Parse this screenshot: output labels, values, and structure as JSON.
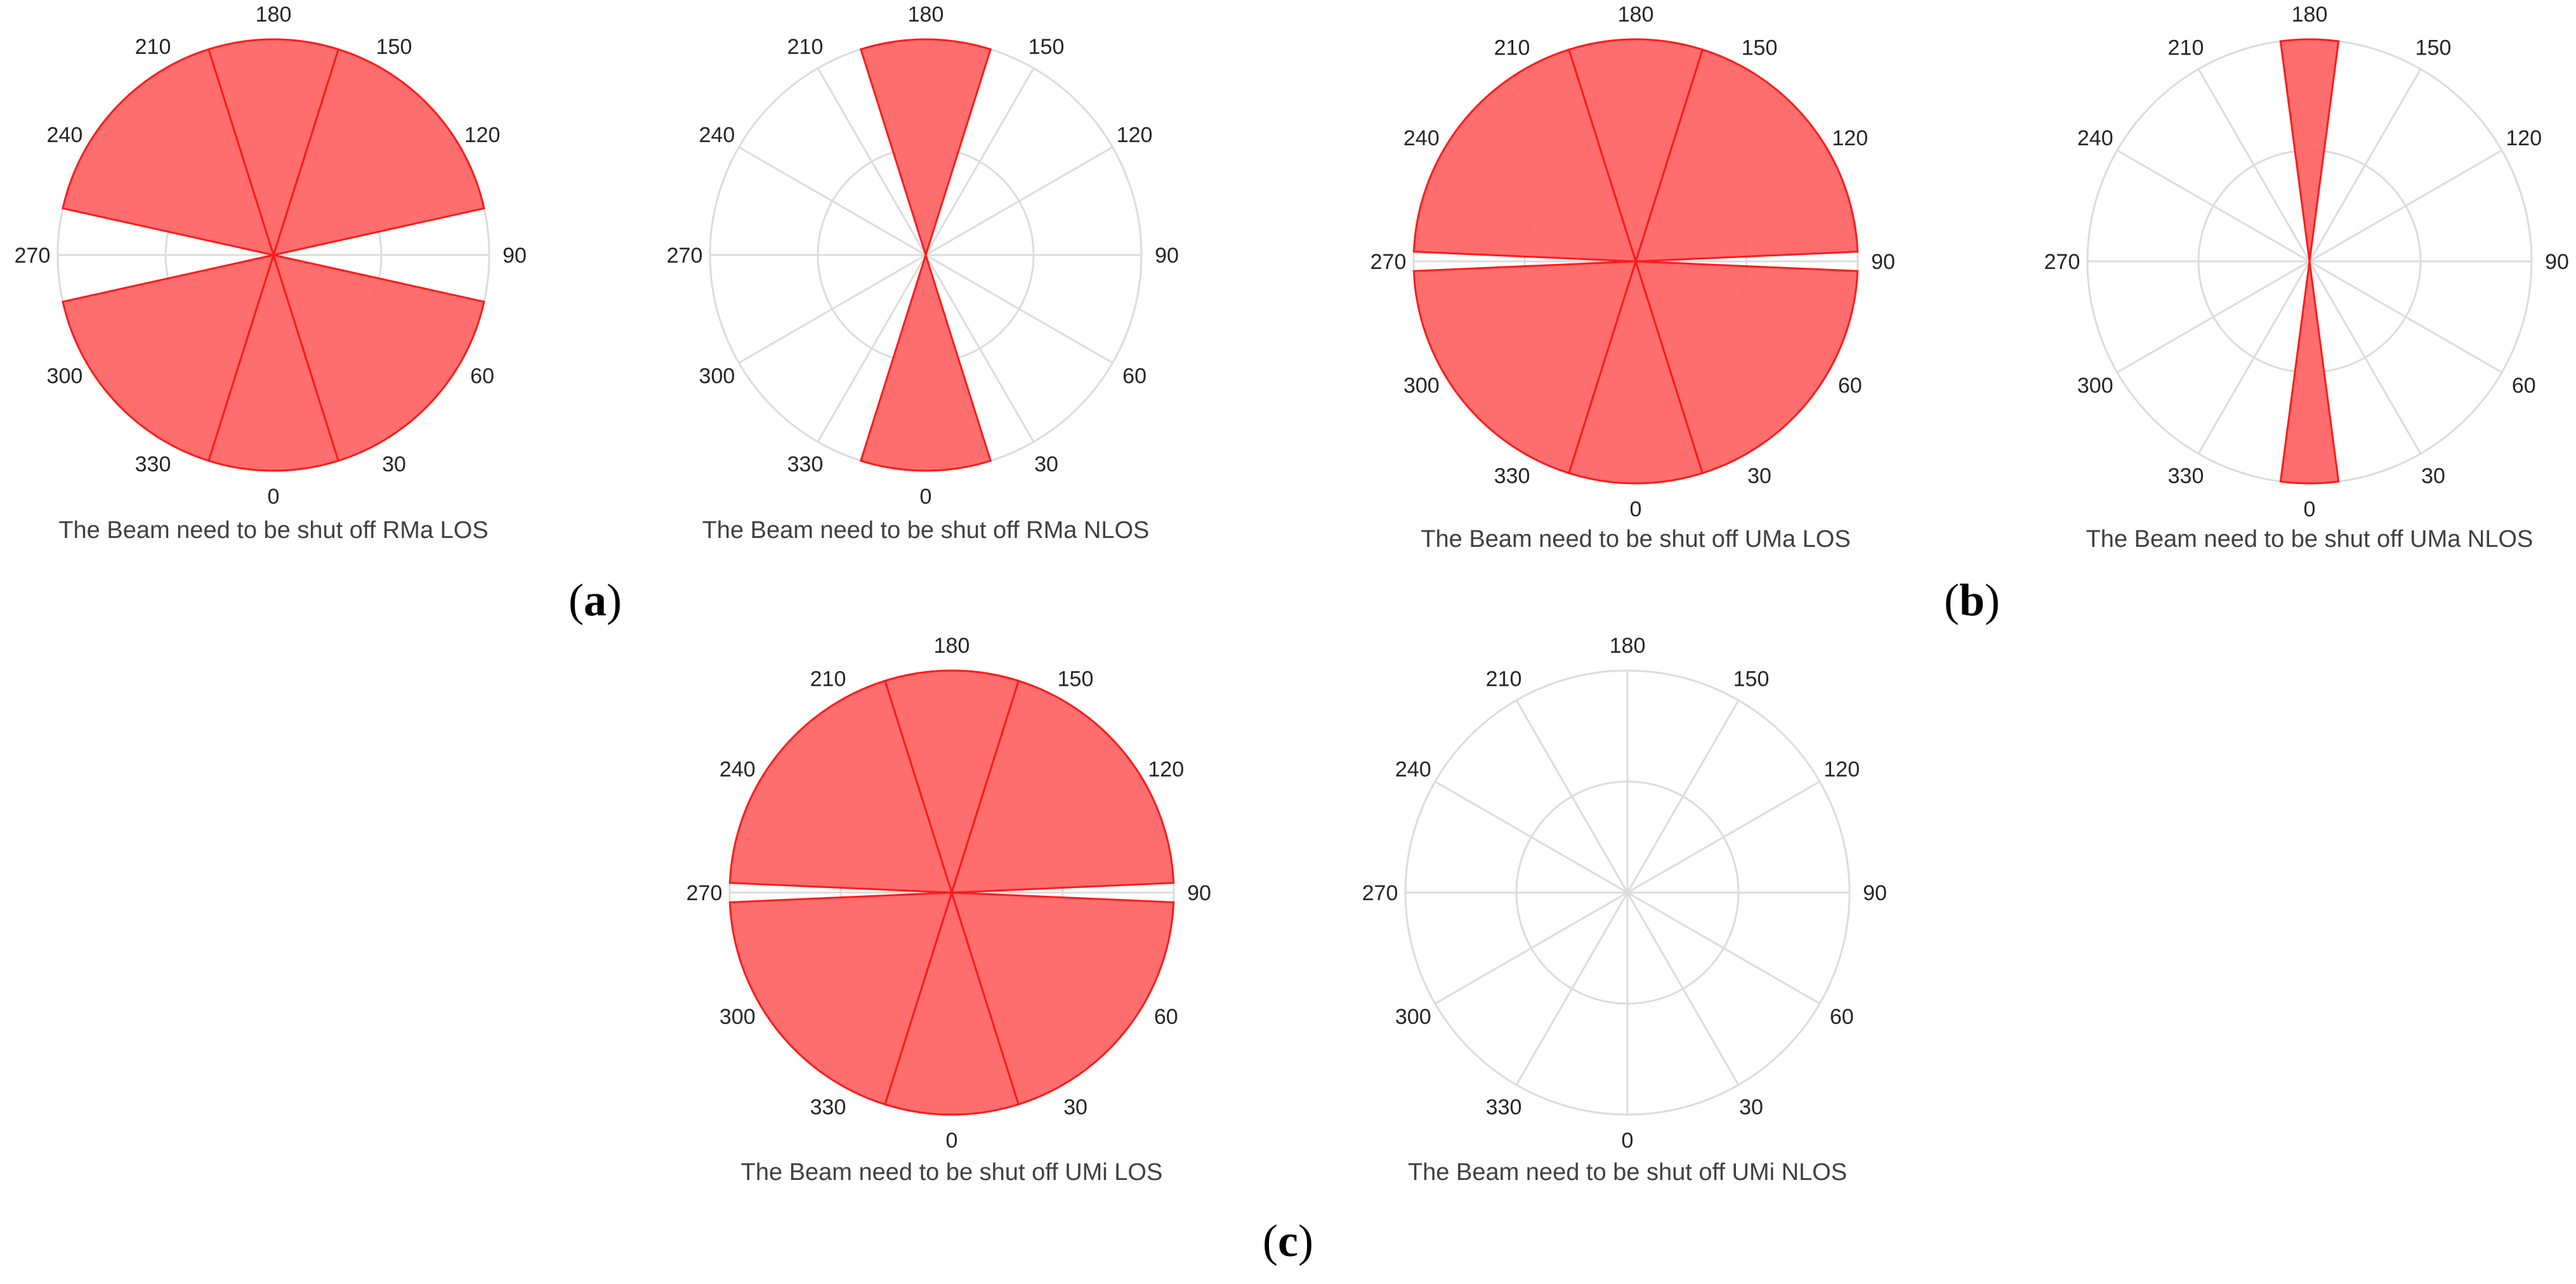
{
  "colors": {
    "fill": "#ff6666",
    "edge": "#ff1a1a",
    "grid": "#dcdcdc"
  },
  "panel_labels": [
    {
      "open": "(",
      "letter": "a",
      "close": ")"
    },
    {
      "open": "(",
      "letter": "b",
      "close": ")"
    },
    {
      "open": "(",
      "letter": "c",
      "close": ")"
    }
  ],
  "chart_data": [
    {
      "type": "polar-histogram",
      "xlabel": "The Beam need to be shut off RMa LOS",
      "theta_ticks": [
        "0",
        "30",
        "60",
        "90",
        "120",
        "150",
        "180",
        "210",
        "240",
        "270",
        "300",
        "330"
      ],
      "theta_zero": "bottom",
      "theta_direction": "counterclockwise",
      "rlim": [
        0,
        1
      ],
      "bins": [
        {
          "start": -17.5,
          "end": 17.5,
          "value": 1
        },
        {
          "start": 17.5,
          "end": 77.5,
          "value": 1
        },
        {
          "start": 102.5,
          "end": 162.5,
          "value": 1
        },
        {
          "start": 162.5,
          "end": 197.5,
          "value": 1
        },
        {
          "start": 197.5,
          "end": 257.5,
          "value": 1
        },
        {
          "start": 282.5,
          "end": 342.5,
          "value": 1
        },
        {
          "start": 342.5,
          "end": 342.5,
          "value": 0
        }
      ]
    },
    {
      "type": "polar-histogram",
      "xlabel": "The Beam need to be shut off RMa NLOS",
      "theta_ticks": [
        "0",
        "30",
        "60",
        "90",
        "120",
        "150",
        "180",
        "210",
        "240",
        "270",
        "300",
        "330"
      ],
      "theta_zero": "bottom",
      "theta_direction": "counterclockwise",
      "rlim": [
        0,
        1
      ],
      "bins": [
        {
          "start": -17.5,
          "end": 17.5,
          "value": 1
        },
        {
          "start": 162.5,
          "end": 197.5,
          "value": 1
        }
      ]
    },
    {
      "type": "polar-histogram",
      "xlabel": "The Beam need to be shut off UMa LOS",
      "theta_ticks": [
        "0",
        "30",
        "60",
        "90",
        "120",
        "150",
        "180",
        "210",
        "240",
        "270",
        "300",
        "330"
      ],
      "theta_zero": "bottom",
      "theta_direction": "counterclockwise",
      "rlim": [
        0,
        1
      ],
      "bins": [
        {
          "start": -17.5,
          "end": 17.5,
          "value": 1
        },
        {
          "start": 17.5,
          "end": 87.5,
          "value": 1
        },
        {
          "start": 92.5,
          "end": 162.5,
          "value": 1
        },
        {
          "start": 162.5,
          "end": 197.5,
          "value": 1
        },
        {
          "start": 197.5,
          "end": 267.5,
          "value": 1
        },
        {
          "start": 272.5,
          "end": 342.5,
          "value": 1
        }
      ]
    },
    {
      "type": "polar-histogram",
      "xlabel": "The Beam need to be shut off UMa NLOS",
      "theta_ticks": [
        "0",
        "30",
        "60",
        "90",
        "120",
        "150",
        "180",
        "210",
        "240",
        "270",
        "300",
        "330"
      ],
      "theta_zero": "bottom",
      "theta_direction": "counterclockwise",
      "rlim": [
        0,
        1
      ],
      "bins": [
        {
          "start": -7.5,
          "end": 7.5,
          "value": 1
        },
        {
          "start": 172.5,
          "end": 187.5,
          "value": 1
        }
      ]
    },
    {
      "type": "polar-histogram",
      "xlabel": "The Beam need to be shut off UMi LOS",
      "theta_ticks": [
        "0",
        "30",
        "60",
        "90",
        "120",
        "150",
        "180",
        "210",
        "240",
        "270",
        "300",
        "330"
      ],
      "theta_zero": "bottom",
      "theta_direction": "counterclockwise",
      "rlim": [
        0,
        1
      ],
      "bins": [
        {
          "start": -17.5,
          "end": 17.5,
          "value": 1
        },
        {
          "start": 17.5,
          "end": 87.5,
          "value": 1
        },
        {
          "start": 92.5,
          "end": 162.5,
          "value": 1
        },
        {
          "start": 162.5,
          "end": 197.5,
          "value": 1
        },
        {
          "start": 197.5,
          "end": 267.5,
          "value": 1
        },
        {
          "start": 272.5,
          "end": 342.5,
          "value": 1
        }
      ]
    },
    {
      "type": "polar-histogram",
      "xlabel": "The Beam need to be shut off UMi NLOS",
      "theta_ticks": [
        "0",
        "30",
        "60",
        "90",
        "120",
        "150",
        "180",
        "210",
        "240",
        "270",
        "300",
        "330"
      ],
      "theta_zero": "bottom",
      "theta_direction": "counterclockwise",
      "rlim": [
        0,
        1
      ],
      "bins": []
    }
  ]
}
